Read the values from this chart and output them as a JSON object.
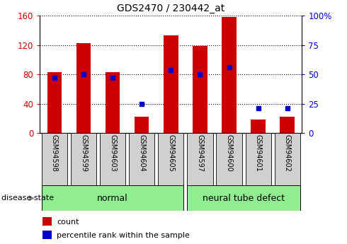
{
  "title": "GDS2470 / 230442_at",
  "samples": [
    "GSM94598",
    "GSM94599",
    "GSM94603",
    "GSM94604",
    "GSM94605",
    "GSM94597",
    "GSM94600",
    "GSM94601",
    "GSM94602"
  ],
  "counts": [
    83,
    123,
    83,
    22,
    133,
    119,
    158,
    18,
    22
  ],
  "percentile_ranks": [
    47,
    50,
    47,
    25,
    54,
    50,
    56,
    21,
    21
  ],
  "normal_indices": [
    0,
    1,
    2,
    3,
    4
  ],
  "ntd_indices": [
    5,
    6,
    7,
    8
  ],
  "bar_color": "#CC0000",
  "dot_color": "#0000CC",
  "left_ylim": [
    0,
    160
  ],
  "right_ylim": [
    0,
    100
  ],
  "left_yticks": [
    0,
    40,
    80,
    120,
    160
  ],
  "right_yticks": [
    0,
    25,
    50,
    75,
    100
  ],
  "right_tick_labels": [
    "0",
    "25",
    "50",
    "75",
    "100%"
  ],
  "tick_color_left": "#CC0000",
  "tick_color_right": "#0000CC",
  "legend_count": "count",
  "legend_percentile": "percentile rank within the sample",
  "disease_state_label": "disease state",
  "group_label_normal": "normal",
  "group_label_ntd": "neural tube defect",
  "group_color": "#90EE90",
  "sample_box_color": "#D0D0D0",
  "bar_width": 0.5
}
